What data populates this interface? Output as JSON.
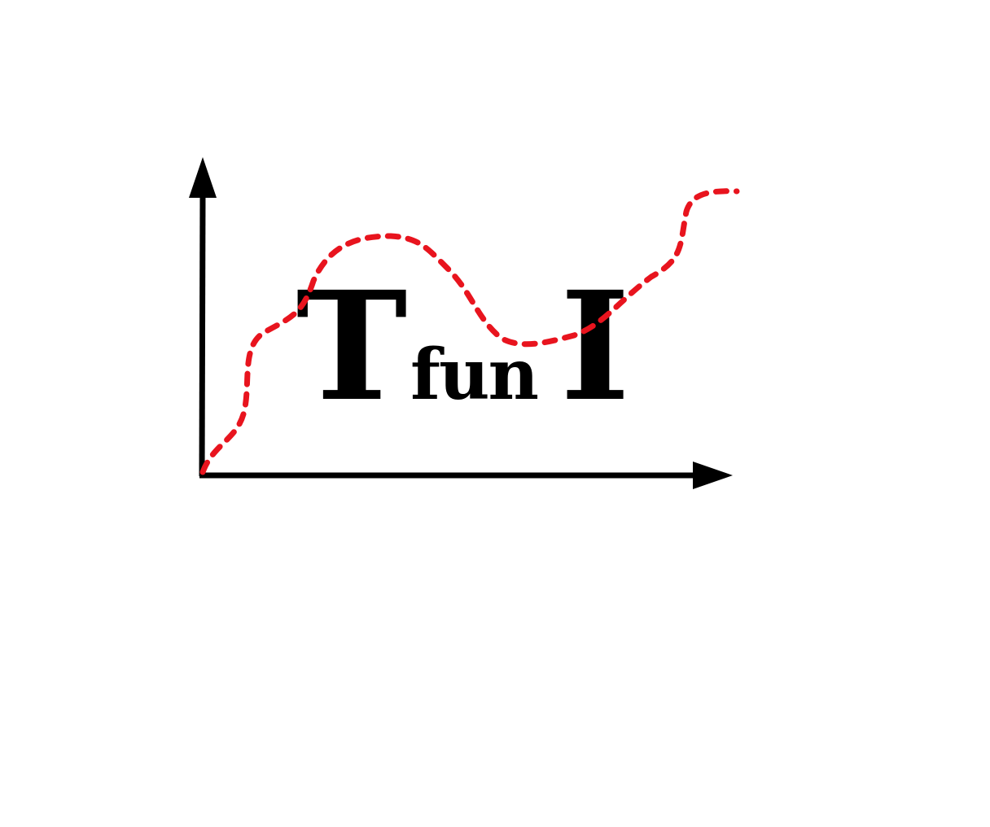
{
  "logo": {
    "letter_left": "T",
    "subscript": "fun",
    "letter_right": "I"
  },
  "colors": {
    "axes": "#000000",
    "curve": "#e8141e",
    "text": "#000000",
    "background": "#ffffff"
  }
}
